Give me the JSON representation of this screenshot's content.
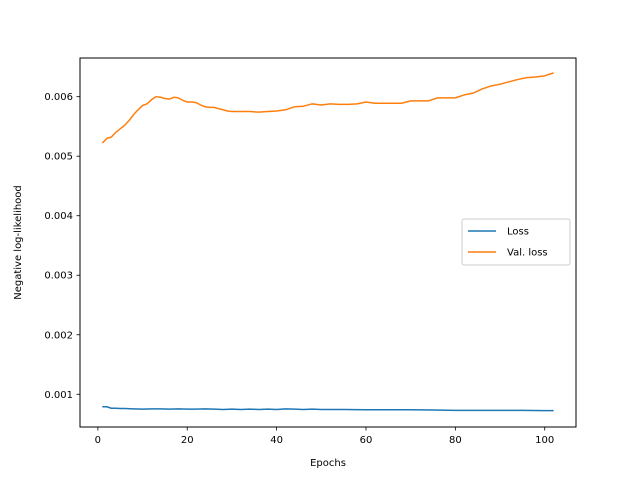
{
  "chart_data": {
    "type": "line",
    "xlabel": "Epochs",
    "ylabel": "Negative log-likelihood",
    "xlim": [
      -4,
      107
    ],
    "ylim": [
      0.00045,
      0.00665
    ],
    "xticks": [
      0,
      20,
      40,
      60,
      80,
      100
    ],
    "xtick_labels": [
      "0",
      "20",
      "40",
      "60",
      "80",
      "100"
    ],
    "yticks": [
      0.001,
      0.002,
      0.003,
      0.004,
      0.005,
      0.006
    ],
    "ytick_labels": [
      "0.001",
      "0.002",
      "0.003",
      "0.004",
      "0.005",
      "0.006"
    ],
    "grid": false,
    "legend_position": "center-right",
    "series": [
      {
        "name": "Loss",
        "color": "#1f77b4",
        "x": [
          1,
          2,
          3,
          4,
          5,
          6,
          8,
          10,
          12,
          14,
          16,
          18,
          20,
          22,
          24,
          26,
          28,
          30,
          32,
          34,
          36,
          38,
          40,
          42,
          44,
          46,
          48,
          50,
          55,
          60,
          65,
          70,
          75,
          80,
          85,
          90,
          95,
          100,
          102
        ],
        "values": [
          0.00079,
          0.00079,
          0.000765,
          0.000765,
          0.00076,
          0.00076,
          0.000755,
          0.00075,
          0.000755,
          0.000755,
          0.00075,
          0.000755,
          0.00075,
          0.00075,
          0.000755,
          0.00075,
          0.000745,
          0.00075,
          0.000745,
          0.00075,
          0.000745,
          0.00075,
          0.000745,
          0.000755,
          0.00075,
          0.000745,
          0.00075,
          0.000745,
          0.000745,
          0.00074,
          0.00074,
          0.00074,
          0.000735,
          0.00073,
          0.00073,
          0.00073,
          0.00073,
          0.000725,
          0.000725
        ]
      },
      {
        "name": "Val. loss",
        "color": "#ff7f0e",
        "x": [
          1,
          2,
          3,
          4,
          5,
          6,
          7,
          8,
          9,
          10,
          11,
          12,
          13,
          14,
          15,
          16,
          17,
          18,
          19,
          20,
          21,
          22,
          23,
          24,
          25,
          26,
          27,
          28,
          29,
          30,
          32,
          34,
          36,
          38,
          40,
          42,
          44,
          46,
          48,
          50,
          52,
          54,
          56,
          58,
          60,
          62,
          64,
          66,
          68,
          70,
          72,
          74,
          76,
          78,
          80,
          82,
          84,
          86,
          88,
          90,
          92,
          94,
          96,
          98,
          100,
          102
        ],
        "values": [
          0.00522,
          0.0053,
          0.00532,
          0.0054,
          0.00546,
          0.00552,
          0.0056,
          0.0057,
          0.00578,
          0.00585,
          0.00588,
          0.00595,
          0.006,
          0.00599,
          0.00597,
          0.00596,
          0.00599,
          0.00598,
          0.00594,
          0.00591,
          0.00591,
          0.0059,
          0.00586,
          0.00583,
          0.00582,
          0.00582,
          0.0058,
          0.00578,
          0.00576,
          0.00575,
          0.00575,
          0.00575,
          0.00574,
          0.00575,
          0.00576,
          0.00578,
          0.00583,
          0.00584,
          0.00588,
          0.00586,
          0.00588,
          0.00587,
          0.00587,
          0.00588,
          0.00591,
          0.00589,
          0.00589,
          0.00589,
          0.00589,
          0.00593,
          0.00593,
          0.00593,
          0.00598,
          0.00598,
          0.00598,
          0.00603,
          0.00606,
          0.00613,
          0.00618,
          0.00621,
          0.00625,
          0.00629,
          0.00632,
          0.00633,
          0.00635,
          0.0064
        ]
      }
    ]
  }
}
